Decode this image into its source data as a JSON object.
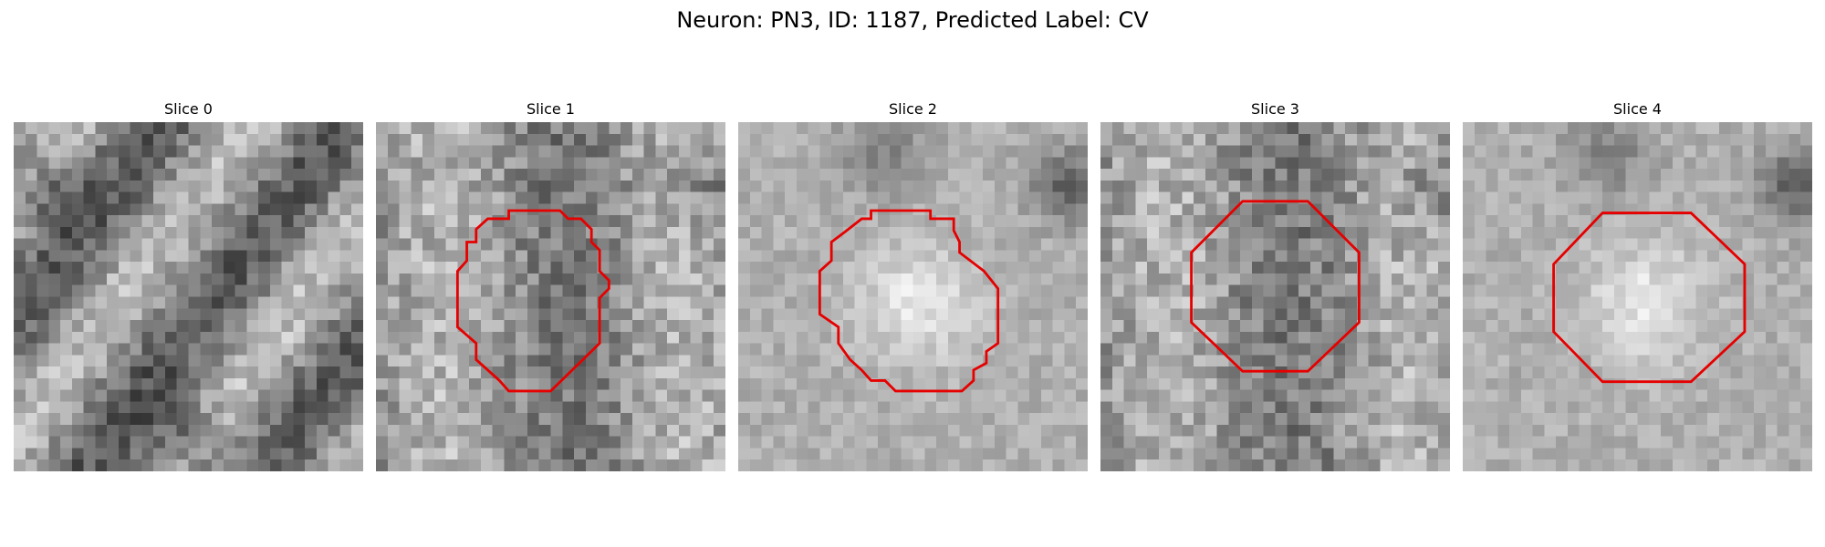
{
  "figure": {
    "title": "Neuron: PN3, ID: 1187, Predicted Label: CV"
  },
  "colors": {
    "outline": "#e60000",
    "background": "#ffffff"
  },
  "panels": [
    {
      "title": "Slice 0",
      "has_outline": false,
      "center_brightness": "dark-noisy"
    },
    {
      "title": "Slice 1",
      "has_outline": true,
      "center_brightness": "medium"
    },
    {
      "title": "Slice 2",
      "has_outline": true,
      "center_brightness": "bright"
    },
    {
      "title": "Slice 3",
      "has_outline": true,
      "center_brightness": "medium"
    },
    {
      "title": "Slice 4",
      "has_outline": true,
      "center_brightness": "bright"
    }
  ]
}
